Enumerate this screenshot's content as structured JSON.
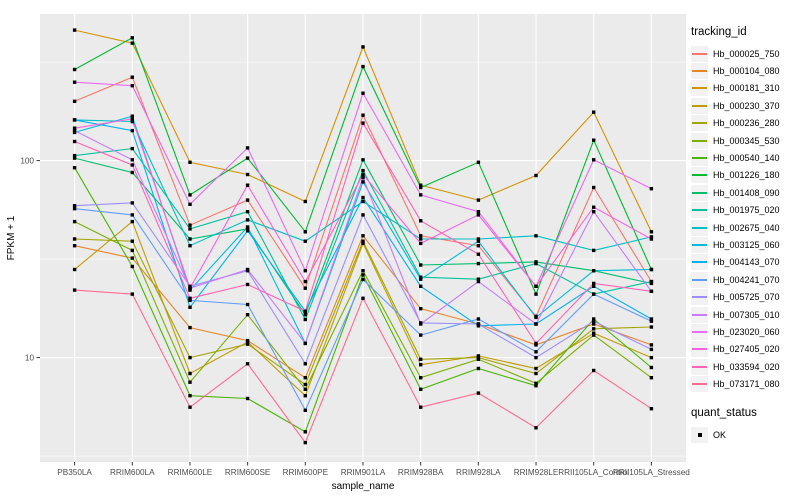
{
  "figure": {
    "background": "#FFFFFF",
    "panel_background": "#EBEBEB",
    "grid_color": "#FFFFFF",
    "axis_text_color": "#4D4D4D",
    "tick_color": "#333333",
    "point_color": "#000000",
    "legend_key_fill": "#F2F2F2"
  },
  "chart_data": {
    "type": "line",
    "title": "",
    "xlabel": "sample_name",
    "ylabel": "FPKM + 1",
    "y_scale": "log10",
    "legend_position": "right",
    "grid": true,
    "y_tick_labels": [
      "100",
      "10"
    ],
    "y_tick_values": [
      100,
      10
    ],
    "y_minor_values": [
      316.2,
      31.62,
      3.162
    ],
    "ylim": [
      2.95,
      555
    ],
    "categories": [
      "PB350LA",
      "RRIM600LA",
      "RRIM600LE",
      "RRIM600SE",
      "RRIM600PE",
      "RRIM901LA",
      "RRIM928BA",
      "RRIM928LA",
      "RRIM928LE",
      "RRII105LA_Control",
      "RRII105LA_Stressed"
    ],
    "series": [
      {
        "name": "Hb_000025_750",
        "color": "#F8766D",
        "values": [
          200,
          265,
          47,
          63,
          22.5,
          170,
          41.5,
          37,
          16.2,
          73,
          24.3
        ]
      },
      {
        "name": "Hb_000104_080",
        "color": "#E88526",
        "values": [
          37,
          32,
          14.2,
          12.2,
          7.9,
          41.5,
          17.7,
          14.8,
          11.6,
          14.8,
          11.6
        ]
      },
      {
        "name": "Hb_000181_310",
        "color": "#D39200",
        "values": [
          460,
          395,
          98,
          85,
          62,
          378,
          75,
          63,
          84,
          176,
          43.5
        ]
      },
      {
        "name": "Hb_000230_370",
        "color": "#BE9C00",
        "values": [
          28,
          49,
          8.3,
          12,
          6.4,
          38,
          9.2,
          10.2,
          8.8,
          13.3,
          10
        ]
      },
      {
        "name": "Hb_000236_280",
        "color": "#A3A500",
        "values": [
          40,
          39,
          10,
          11.7,
          7.3,
          39,
          9.8,
          10,
          8.3,
          14,
          14.3
        ]
      },
      {
        "name": "Hb_000345_530",
        "color": "#7CAE00",
        "values": [
          49,
          35,
          7.5,
          16.5,
          6.9,
          27.6,
          7.9,
          9.8,
          7.4,
          13,
          7.9
        ]
      },
      {
        "name": "Hb_000540_140",
        "color": "#49B500",
        "values": [
          92,
          29,
          6.4,
          6.2,
          4.2,
          26.3,
          6.9,
          8.8,
          7.2,
          15.7,
          8.9
        ]
      },
      {
        "name": "Hb_001226_180",
        "color": "#00B934",
        "values": [
          290,
          420,
          67,
          103,
          43.5,
          300,
          73,
          98,
          21,
          127,
          28
        ]
      },
      {
        "name": "Hb_001408_090",
        "color": "#00BE6C",
        "values": [
          103,
          87,
          40,
          45,
          16.5,
          101,
          29.5,
          30,
          30.6,
          27.6,
          23.8
        ]
      },
      {
        "name": "Hb_001975_020",
        "color": "#00C19A",
        "values": [
          106,
          115,
          45,
          55,
          15.6,
          89,
          25.6,
          25,
          30,
          21,
          24.3
        ]
      },
      {
        "name": "Hb_002675_040",
        "color": "#00BFC4",
        "values": [
          161,
          158,
          37,
          50,
          39,
          62,
          40,
          40,
          41.5,
          35,
          41
        ]
      },
      {
        "name": "Hb_003125_060",
        "color": "#00BBDA",
        "values": [
          139,
          168,
          22,
          46,
          11.8,
          78,
          25,
          39,
          16,
          27.6,
          28
        ]
      },
      {
        "name": "Hb_004143_070",
        "color": "#00B1F2",
        "values": [
          161,
          142,
          18,
          44,
          17.2,
          65,
          23,
          14.5,
          14.8,
          23,
          15.7
        ]
      },
      {
        "name": "Hb_004241_070",
        "color": "#619CFF",
        "values": [
          57,
          53,
          19.5,
          18.6,
          5.4,
          24.9,
          13,
          15.7,
          10.7,
          21,
          15.3
        ]
      },
      {
        "name": "Hb_005725_070",
        "color": "#9C8DFF",
        "values": [
          59,
          61,
          23,
          27.6,
          9.3,
          53,
          15,
          14.8,
          10,
          15.3,
          11
        ]
      },
      {
        "name": "Hb_007305_010",
        "color": "#C77CFF",
        "values": [
          142,
          101,
          22.5,
          28,
          11.8,
          82,
          14.8,
          24.3,
          14.8,
          55,
          21.7
        ]
      },
      {
        "name": "Hb_023020_060",
        "color": "#E76BF3",
        "values": [
          250,
          240,
          60,
          116,
          27.6,
          220,
          67,
          55,
          23,
          101,
          72
        ]
      },
      {
        "name": "Hb_027405_020",
        "color": "#F962DD",
        "values": [
          146,
          163,
          22.5,
          75,
          24.3,
          85,
          38,
          53,
          23,
          58,
          40
        ]
      },
      {
        "name": "Hb_033594_020",
        "color": "#FF63B6",
        "values": [
          125,
          95,
          20,
          23.5,
          17.2,
          155,
          49.5,
          33.5,
          11.8,
          23.8,
          21.7
        ]
      },
      {
        "name": "Hb_073171_080",
        "color": "#FF6C91",
        "values": [
          22,
          21,
          5.6,
          9.3,
          3.7,
          20,
          5.6,
          6.6,
          4.4,
          8.6,
          5.5
        ]
      }
    ],
    "legend": {
      "tracking_title": "tracking_id",
      "quant_title": "quant_status",
      "quant_items": [
        {
          "label": "OK",
          "shape": "square",
          "color": "#000000"
        }
      ]
    }
  }
}
